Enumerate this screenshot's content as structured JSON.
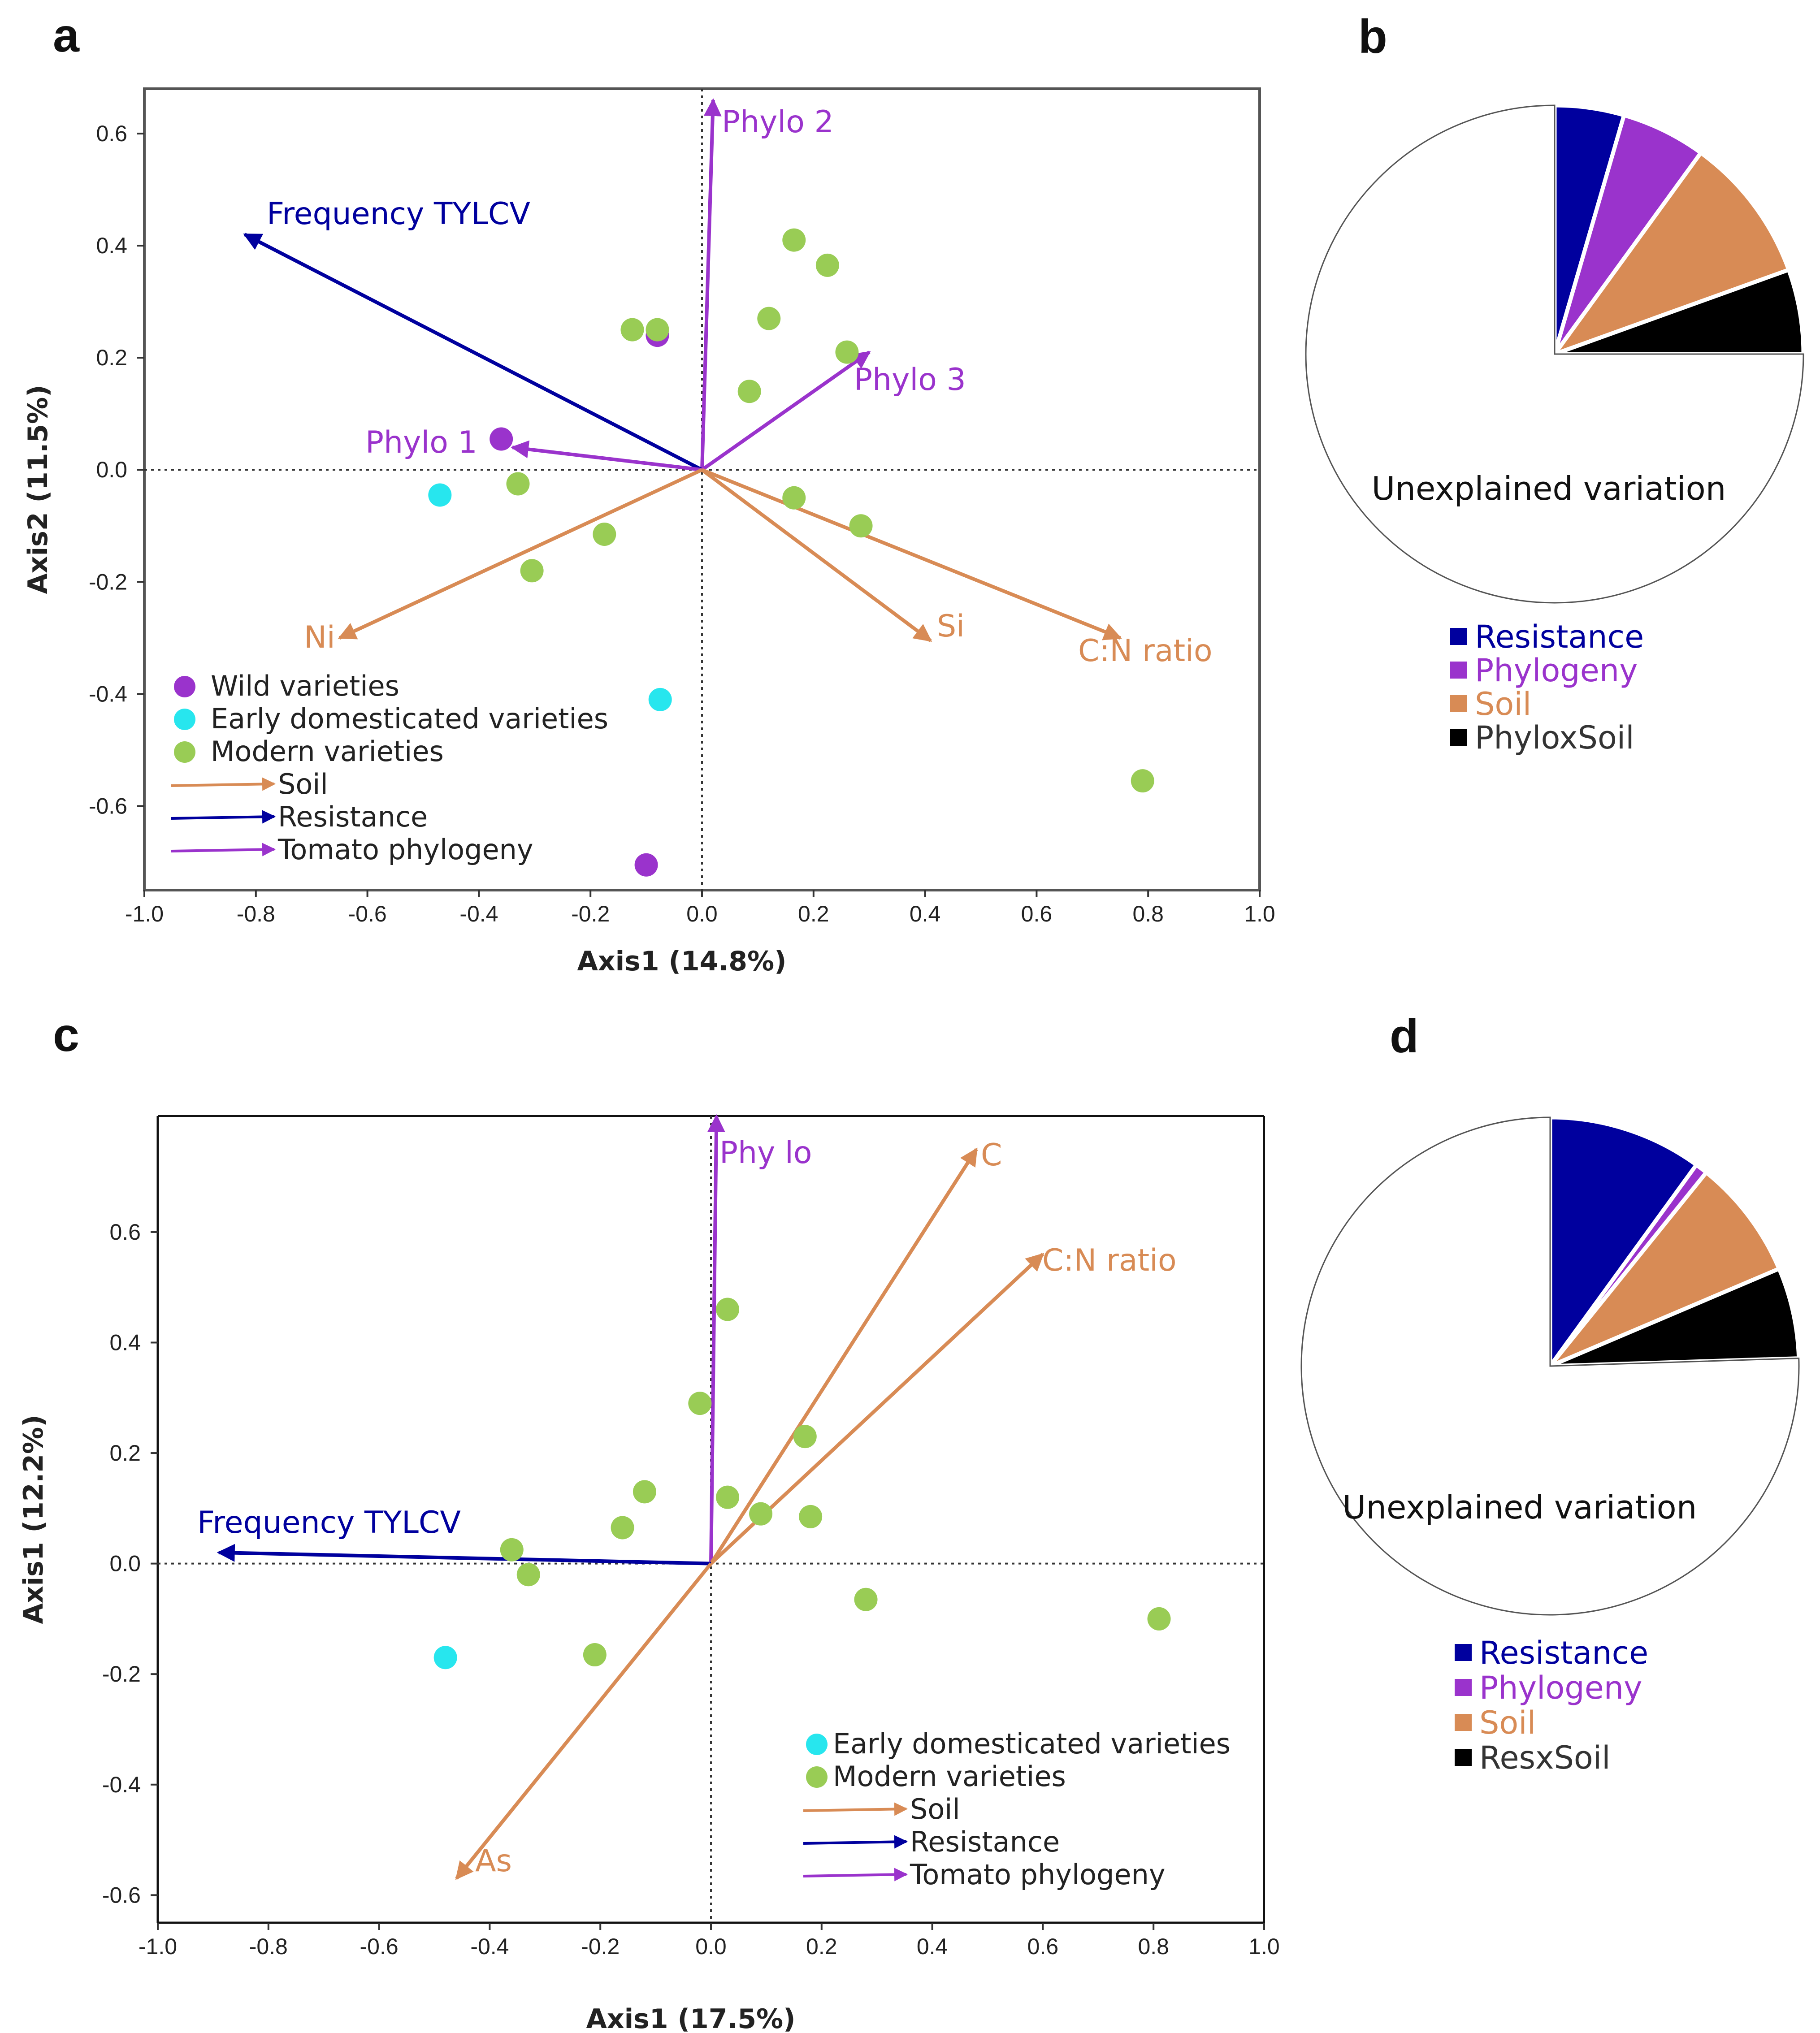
{
  "colors": {
    "resistance": "#00009e",
    "phylogeny": "#9a33cc",
    "soil": "#d88b55",
    "interaction": "#000000",
    "wild": "#9a33cc",
    "early": "#27e6ee",
    "modern": "#99cc55",
    "axis": "#222222"
  },
  "chart_data": [
    {
      "panel": "a",
      "type": "scatter",
      "xlabel": "Axis1 (14.8%)",
      "ylabel": "Axis2 (11.5%)",
      "xlim": [
        -1.0,
        1.0
      ],
      "ylim": [
        -0.75,
        0.68
      ],
      "xticks": [
        -1.0,
        -0.8,
        -0.6,
        -0.4,
        -0.2,
        0.0,
        0.2,
        0.4,
        0.6,
        0.8,
        1.0
      ],
      "yticks": [
        0.6,
        0.4,
        0.2,
        0.0,
        -0.2,
        -0.4,
        -0.6
      ],
      "xtick_labels": [
        "-1.0",
        "-0.8",
        "-0.6",
        "-0.4",
        "-0.2",
        "0.0",
        "0.2",
        "0.4",
        "0.6",
        "0.8",
        "1.0"
      ],
      "ytick_labels": [
        "0.6",
        "0.4",
        "0.2",
        "0.0",
        "-0.2",
        "-0.4",
        "-0.6"
      ],
      "box": true,
      "points": [
        {
          "group": "wild",
          "x": -0.36,
          "y": 0.055
        },
        {
          "group": "wild",
          "x": -0.08,
          "y": 0.24
        },
        {
          "group": "wild",
          "x": -0.1,
          "y": -0.705
        },
        {
          "group": "early",
          "x": -0.47,
          "y": -0.045
        },
        {
          "group": "early",
          "x": -0.075,
          "y": -0.41
        },
        {
          "group": "modern",
          "x": 0.165,
          "y": 0.41
        },
        {
          "group": "modern",
          "x": 0.225,
          "y": 0.365
        },
        {
          "group": "modern",
          "x": 0.12,
          "y": 0.27
        },
        {
          "group": "modern",
          "x": -0.125,
          "y": 0.25
        },
        {
          "group": "modern",
          "x": -0.08,
          "y": 0.25
        },
        {
          "group": "modern",
          "x": 0.26,
          "y": 0.21
        },
        {
          "group": "modern",
          "x": 0.085,
          "y": 0.14
        },
        {
          "group": "modern",
          "x": -0.33,
          "y": -0.025
        },
        {
          "group": "modern",
          "x": 0.165,
          "y": -0.05
        },
        {
          "group": "modern",
          "x": 0.285,
          "y": -0.1
        },
        {
          "group": "modern",
          "x": -0.175,
          "y": -0.115
        },
        {
          "group": "modern",
          "x": -0.305,
          "y": -0.18
        },
        {
          "group": "modern",
          "x": 0.79,
          "y": -0.555
        }
      ],
      "vectors": [
        {
          "label": "Phylo 2",
          "group": "phylogeny",
          "x": 0.02,
          "y": 0.66
        },
        {
          "label": "Frequency TYLCV",
          "group": "resistance",
          "x": -0.82,
          "y": 0.42
        },
        {
          "label": "Phylo 3",
          "group": "phylogeny",
          "x": 0.3,
          "y": 0.21
        },
        {
          "label": "Phylo 1",
          "group": "phylogeny",
          "x": -0.34,
          "y": 0.04
        },
        {
          "label": "Ni",
          "group": "soil",
          "x": -0.65,
          "y": -0.3
        },
        {
          "label": "Si",
          "group": "soil",
          "x": 0.41,
          "y": -0.305
        },
        {
          "label": "C:N ratio",
          "group": "soil",
          "x": 0.75,
          "y": -0.3
        }
      ],
      "legend": [
        {
          "kind": "point",
          "group": "wild",
          "label": "Wild varieties"
        },
        {
          "kind": "point",
          "group": "early",
          "label": "Early domesticated varieties"
        },
        {
          "kind": "point",
          "group": "modern",
          "label": "Modern varieties"
        },
        {
          "kind": "arrow",
          "group": "soil",
          "label": "Soil"
        },
        {
          "kind": "arrow",
          "group": "resistance",
          "label": "Resistance"
        },
        {
          "kind": "arrow",
          "group": "phylogeny",
          "label": "Tomato phylogeny"
        }
      ]
    },
    {
      "panel": "c",
      "type": "scatter",
      "xlabel": "Axis1 (17.5%)",
      "ylabel": "Axis1 (12.2%)",
      "xlim": [
        -1.0,
        1.0
      ],
      "ylim": [
        -0.65,
        0.81
      ],
      "xticks": [
        -1.0,
        -0.8,
        -0.6,
        -0.4,
        -0.2,
        0.0,
        0.2,
        0.4,
        0.6,
        0.8,
        1.0
      ],
      "yticks": [
        0.6,
        0.4,
        0.2,
        0.0,
        -0.2,
        -0.4,
        -0.6
      ],
      "xtick_labels": [
        "-1.0",
        "-0.8",
        "-0.6",
        "-0.4",
        "-0.2",
        "0.0",
        "0.2",
        "0.4",
        "0.6",
        "0.8",
        "1.0"
      ],
      "ytick_labels": [
        "0.6",
        "0.4",
        "0.2",
        "0.0",
        "-0.2",
        "-0.4",
        "-0.6"
      ],
      "box": false,
      "points": [
        {
          "group": "early",
          "x": -0.48,
          "y": -0.17
        },
        {
          "group": "modern",
          "x": 0.03,
          "y": 0.46
        },
        {
          "group": "modern",
          "x": -0.02,
          "y": 0.29
        },
        {
          "group": "modern",
          "x": 0.17,
          "y": 0.23
        },
        {
          "group": "modern",
          "x": -0.12,
          "y": 0.13
        },
        {
          "group": "modern",
          "x": 0.03,
          "y": 0.12
        },
        {
          "group": "modern",
          "x": -0.16,
          "y": 0.065
        },
        {
          "group": "modern",
          "x": 0.09,
          "y": 0.09
        },
        {
          "group": "modern",
          "x": 0.18,
          "y": 0.085
        },
        {
          "group": "modern",
          "x": -0.36,
          "y": 0.025
        },
        {
          "group": "modern",
          "x": -0.33,
          "y": -0.02
        },
        {
          "group": "modern",
          "x": 0.28,
          "y": -0.065
        },
        {
          "group": "modern",
          "x": -0.21,
          "y": -0.165
        },
        {
          "group": "modern",
          "x": 0.81,
          "y": -0.1
        }
      ],
      "vectors": [
        {
          "label": "Phy lo",
          "group": "phylogeny",
          "x": 0.01,
          "y": 0.81
        },
        {
          "label": "C",
          "group": "soil",
          "x": 0.48,
          "y": 0.75
        },
        {
          "label": "C:N ratio",
          "group": "soil",
          "x": 0.6,
          "y": 0.56
        },
        {
          "label": "Frequency  TYLCV",
          "group": "resistance",
          "x": -0.89,
          "y": 0.02
        },
        {
          "label": "As",
          "group": "soil",
          "x": -0.46,
          "y": -0.57
        }
      ],
      "legend": [
        {
          "kind": "point",
          "group": "early",
          "label": "Early domesticated varieties"
        },
        {
          "kind": "point",
          "group": "modern",
          "label": "Modern varieties"
        },
        {
          "kind": "arrow",
          "group": "soil",
          "label": "Soil"
        },
        {
          "kind": "arrow",
          "group": "resistance",
          "label": "Resistance"
        },
        {
          "kind": "arrow",
          "group": "phylogeny",
          "label": "Tomato phylogeny"
        }
      ]
    },
    {
      "panel": "b",
      "type": "pie",
      "center_label": "Unexplained variation",
      "slices": [
        {
          "label": "Resistance",
          "group": "resistance",
          "value": 4.5
        },
        {
          "label": "Phylogeny",
          "group": "phylogeny",
          "value": 5.5
        },
        {
          "label": "Soil",
          "group": "soil",
          "value": 9.5
        },
        {
          "label": "PhyloxSoil",
          "group": "interaction",
          "value": 5.5
        },
        {
          "label": "Unexplained variation",
          "group": "unexplained",
          "value": 75.0
        }
      ],
      "legend": [
        "Resistance",
        "Phylogeny",
        "Soil",
        "PhyloxSoil"
      ]
    },
    {
      "panel": "d",
      "type": "pie",
      "center_label": "Unexplained variation",
      "slices": [
        {
          "label": "Resistance",
          "group": "resistance",
          "value": 10.0
        },
        {
          "label": "Phylogeny",
          "group": "phylogeny",
          "value": 0.8
        },
        {
          "label": "Soil",
          "group": "soil",
          "value": 7.8
        },
        {
          "label": "ResxSoil",
          "group": "interaction",
          "value": 5.9
        },
        {
          "label": "Unexplained variation",
          "group": "unexplained",
          "value": 75.5
        }
      ],
      "legend": [
        "Resistance",
        "Phylogeny",
        "Soil",
        "ResxSoil"
      ]
    }
  ]
}
